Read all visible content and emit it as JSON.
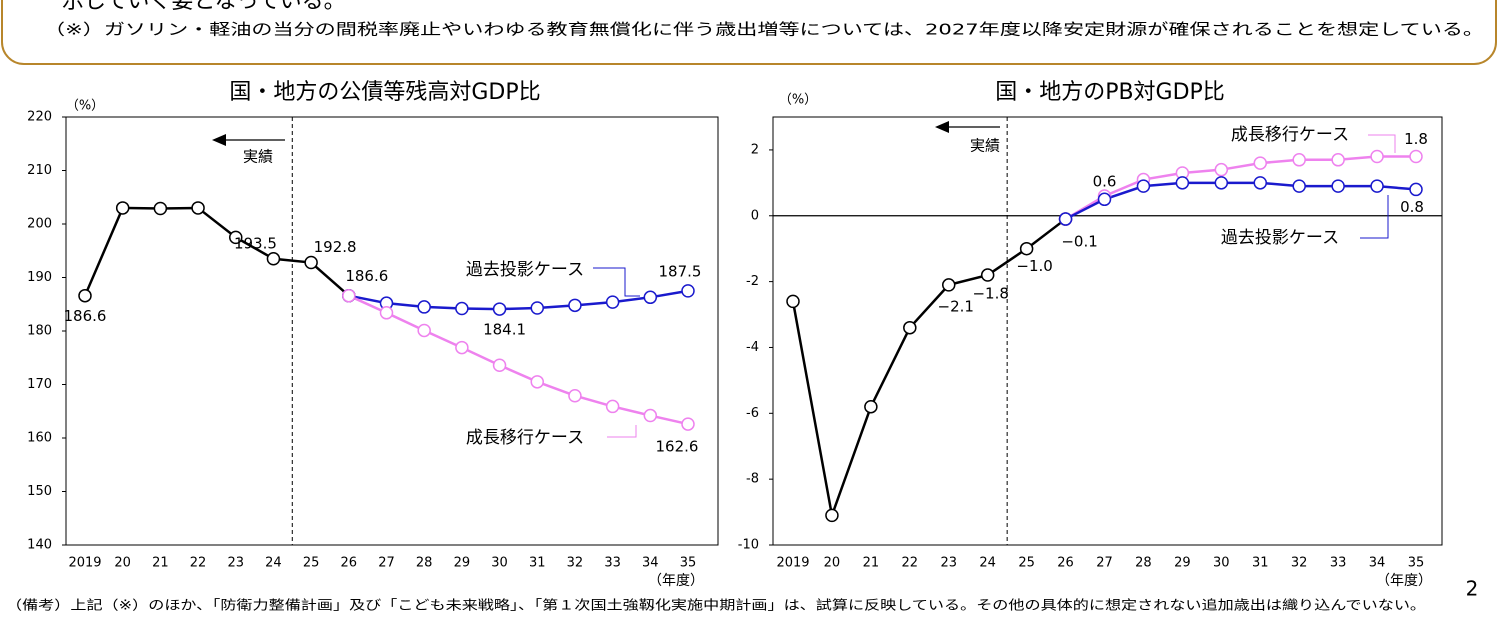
{
  "header": {
    "clipped_text": "示していく姿となっている。",
    "note": "（※）ガソリン・軽油の当分の間税率廃止やいわゆる教育無償化に伴う歳出増等については、2027年度以降安定財源が確保されることを想定している。"
  },
  "chart_data": [
    {
      "type": "line",
      "title": "国・地方の公債等残高対GDP比",
      "y_label": "（%）",
      "x_label": "（年度）",
      "annotation": "実績",
      "categories": [
        "2019",
        "20",
        "21",
        "22",
        "23",
        "24",
        "25",
        "26",
        "27",
        "28",
        "29",
        "30",
        "31",
        "32",
        "33",
        "34",
        "35"
      ],
      "ylim": [
        140,
        220
      ],
      "yticks": [
        140,
        150,
        160,
        170,
        180,
        190,
        200,
        210,
        220
      ],
      "series": [
        {
          "name": null,
          "color": "#000000",
          "values": [
            186.6,
            203.0,
            202.9,
            203.0,
            197.5,
            193.5,
            192.8,
            186.6,
            null,
            null,
            null,
            null,
            null,
            null,
            null,
            null,
            null
          ],
          "value_labels": [
            "186.6",
            null,
            null,
            null,
            null,
            "193.5",
            "192.8",
            "186.6",
            null,
            null,
            null,
            null,
            null,
            null,
            null,
            null,
            null
          ]
        },
        {
          "name": "過去投影ケース",
          "color": "#1a1acd",
          "values": [
            null,
            null,
            null,
            null,
            null,
            null,
            null,
            186.6,
            185.2,
            184.5,
            184.2,
            184.1,
            184.3,
            184.8,
            185.4,
            186.3,
            187.5
          ],
          "value_labels": [
            null,
            null,
            null,
            null,
            null,
            null,
            null,
            null,
            null,
            null,
            null,
            "184.1",
            null,
            null,
            null,
            null,
            "187.5"
          ]
        },
        {
          "name": "成長移行ケース",
          "color": "#ee82ee",
          "values": [
            null,
            null,
            null,
            null,
            null,
            null,
            null,
            186.6,
            183.4,
            180.1,
            176.9,
            173.6,
            170.5,
            167.9,
            165.9,
            164.2,
            162.6
          ],
          "value_labels": [
            null,
            null,
            null,
            null,
            null,
            null,
            null,
            null,
            null,
            null,
            null,
            null,
            null,
            null,
            null,
            null,
            "162.6"
          ]
        }
      ]
    },
    {
      "type": "line",
      "title": "国・地方のPB対GDP比",
      "y_label": "（%）",
      "x_label": "（年度）",
      "annotation": "実績",
      "categories": [
        "2019",
        "20",
        "21",
        "22",
        "23",
        "24",
        "25",
        "26",
        "27",
        "28",
        "29",
        "30",
        "31",
        "32",
        "33",
        "34",
        "35"
      ],
      "ylim": [
        -10,
        3
      ],
      "yticks": [
        -10,
        -8,
        -6,
        -4,
        -2,
        0,
        2
      ],
      "series": [
        {
          "name": null,
          "color": "#000000",
          "values": [
            -2.6,
            -9.1,
            -5.8,
            -3.4,
            -2.1,
            -1.8,
            -1.0,
            -0.1,
            null,
            null,
            null,
            null,
            null,
            null,
            null,
            null,
            null
          ],
          "value_labels": [
            null,
            null,
            null,
            null,
            "−2.1",
            "−1.8",
            "−1.0",
            "−0.1",
            null,
            null,
            null,
            null,
            null,
            null,
            null,
            null,
            null
          ]
        },
        {
          "name": "成長移行ケース",
          "color": "#ee82ee",
          "values": [
            null,
            null,
            null,
            null,
            null,
            null,
            null,
            -0.1,
            0.6,
            1.1,
            1.3,
            1.4,
            1.6,
            1.7,
            1.7,
            1.8,
            1.8
          ],
          "value_labels": [
            null,
            null,
            null,
            null,
            null,
            null,
            null,
            null,
            "0.6",
            null,
            null,
            null,
            null,
            null,
            null,
            null,
            "1.8"
          ]
        },
        {
          "name": "過去投影ケース",
          "color": "#1a1acd",
          "values": [
            null,
            null,
            null,
            null,
            null,
            null,
            null,
            -0.1,
            0.5,
            0.9,
            1.0,
            1.0,
            1.0,
            0.9,
            0.9,
            0.9,
            0.8
          ],
          "value_labels": [
            null,
            null,
            null,
            null,
            null,
            null,
            null,
            null,
            null,
            null,
            null,
            null,
            null,
            null,
            null,
            null,
            "0.8"
          ]
        }
      ]
    }
  ],
  "footer": {
    "note": "（備考）上記（※）のほか、「防衛力整備計画」及び「こども未来戦略」、「第１次国土強靱化実施中期計画」は、試算に反映している。その他の具体的に想定されない追加歳出は織り込んでいない。",
    "page_number": "2"
  }
}
